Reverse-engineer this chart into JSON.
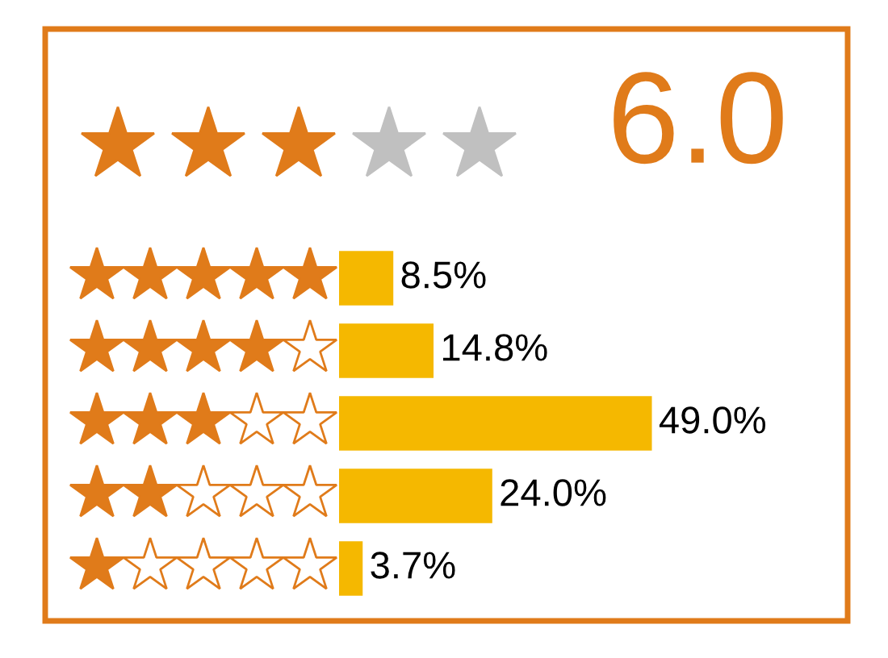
{
  "chart_data": {
    "type": "bar",
    "orientation": "horizontal",
    "title": "6.0",
    "categories": [
      null,
      null,
      null,
      null,
      null
    ],
    "values": [
      8.5,
      14.8,
      49.0,
      24.0,
      3.7
    ],
    "color": "#f5b800",
    "value_labels": [
      "8.5%",
      "14.8%",
      "49.0%",
      "24.0%",
      "3.7%"
    ],
    "tick_labels": false
  }
}
